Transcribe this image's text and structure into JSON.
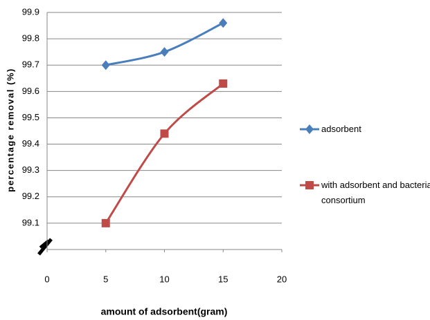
{
  "chart_data": {
    "type": "line",
    "xlabel": "amount of adsorbent(gram)",
    "ylabel": "percentage removal (%)",
    "x": [
      5,
      10,
      15
    ],
    "series": [
      {
        "name": "adsorbent",
        "color": "#4a7ebb",
        "marker": "diamond",
        "values": [
          99.7,
          99.75,
          99.86
        ]
      },
      {
        "name": "with adsorbent and bacterial consortium",
        "color": "#be4b48",
        "marker": "square",
        "values": [
          99.1,
          99.44,
          99.63
        ]
      }
    ],
    "xlim": [
      0,
      20
    ],
    "xticks": [
      0,
      5,
      10,
      15,
      20
    ],
    "ylim": [
      99.0,
      99.9
    ],
    "yticks": [
      99.1,
      99.2,
      99.3,
      99.4,
      99.5,
      99.6,
      99.7,
      99.8,
      99.9
    ],
    "grid": true,
    "legend": "right"
  }
}
